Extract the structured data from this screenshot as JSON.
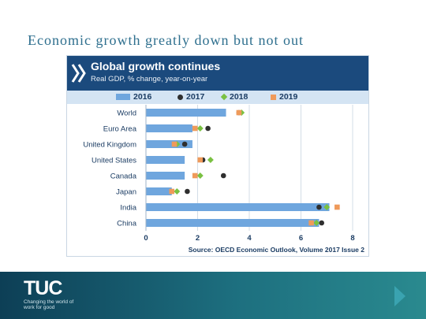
{
  "slide": {
    "title": "Economic growth greatly down but not out"
  },
  "footer": {
    "logo": "TUC",
    "tagline": "Changing the world of work for good"
  },
  "colors": {
    "header": "#1b4a7d",
    "legend_band": "#d4e4f3",
    "bar_2016": "#6fa6de",
    "dot_2017": "#2f2f2f",
    "diamond_2018": "#7ac142",
    "square_2019": "#ef9a5a",
    "footer_band": "#0d3f56"
  },
  "chart_data": {
    "type": "bar",
    "orientation": "horizontal",
    "title": "Global growth continues",
    "subtitle": "Real GDP, % change, year-on-year",
    "source": "Source: OECD Economic Outlook, Volume 2017 Issue 2",
    "categories": [
      "World",
      "Euro Area",
      "United Kingdom",
      "United States",
      "Canada",
      "Japan",
      "India",
      "China"
    ],
    "xlim": [
      0,
      8
    ],
    "xticks": [
      "0",
      "2",
      "4",
      "6",
      "8"
    ],
    "grid": true,
    "legend_position": "top",
    "series": [
      {
        "name": "2016",
        "mark": "bar",
        "values": [
          3.1,
          1.8,
          1.8,
          1.5,
          1.5,
          1.0,
          7.1,
          6.7
        ]
      },
      {
        "name": "2017",
        "mark": "dot",
        "values": [
          3.6,
          2.4,
          1.5,
          2.2,
          3.0,
          1.6,
          6.7,
          6.8
        ]
      },
      {
        "name": "2018",
        "mark": "diamond",
        "values": [
          3.7,
          2.1,
          1.2,
          2.5,
          2.1,
          1.2,
          7.0,
          6.6
        ]
      },
      {
        "name": "2019",
        "mark": "square",
        "values": [
          3.6,
          1.9,
          1.1,
          2.1,
          1.9,
          1.0,
          7.4,
          6.4
        ]
      }
    ]
  }
}
